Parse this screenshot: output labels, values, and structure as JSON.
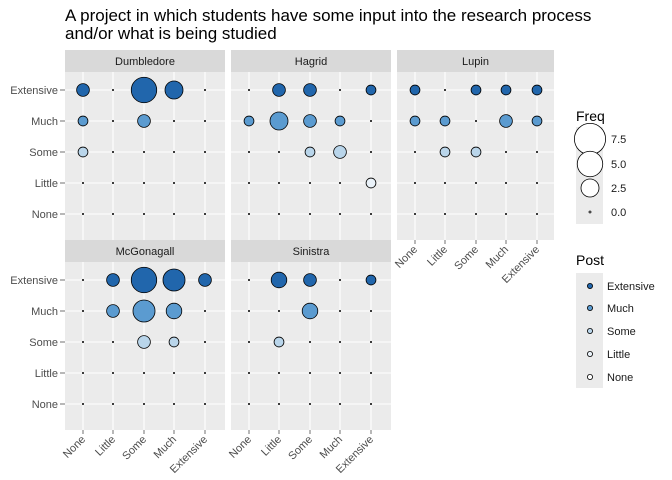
{
  "chart_data": {
    "type": "scatter",
    "title": "A project in which students have some input into the research process",
    "title_line2": "and/or what is being studied",
    "categories": [
      "None",
      "Little",
      "Some",
      "Much",
      "Extensive"
    ],
    "facet_order": [
      "Dumbledore",
      "Hagrid",
      "Lupin",
      "McGonagall",
      "Sinistra"
    ],
    "grid": true,
    "legend_position": "right",
    "size_legend": {
      "title": "Freq",
      "breaks": [
        7.5,
        5.0,
        2.5,
        0.0
      ],
      "labels": [
        "7.5",
        "5.0",
        "2.5",
        "0.0"
      ]
    },
    "fill_legend": {
      "title": "Post",
      "levels": [
        "Extensive",
        "Much",
        "Some",
        "Little",
        "None"
      ],
      "colors": {
        "Extensive": "#2166ac",
        "Much": "#5b9bd0",
        "Some": "#b9d5ea",
        "Little": "#eaf2f9",
        "None": "#ffffff"
      }
    },
    "facets": [
      {
        "name": "Dumbledore",
        "points": [
          {
            "x": "None",
            "y": "Extensive",
            "freq": 1
          },
          {
            "x": "Some",
            "y": "Extensive",
            "freq": 4
          },
          {
            "x": "Much",
            "y": "Extensive",
            "freq": 2
          },
          {
            "x": "None",
            "y": "Much",
            "freq": 0.6
          },
          {
            "x": "Some",
            "y": "Much",
            "freq": 1
          },
          {
            "x": "None",
            "y": "Some",
            "freq": 0.6
          }
        ]
      },
      {
        "name": "Hagrid",
        "points": [
          {
            "x": "Little",
            "y": "Extensive",
            "freq": 1
          },
          {
            "x": "Some",
            "y": "Extensive",
            "freq": 1
          },
          {
            "x": "Extensive",
            "y": "Extensive",
            "freq": 0.6
          },
          {
            "x": "None",
            "y": "Much",
            "freq": 0.6
          },
          {
            "x": "Little",
            "y": "Much",
            "freq": 2
          },
          {
            "x": "Some",
            "y": "Much",
            "freq": 1
          },
          {
            "x": "Much",
            "y": "Much",
            "freq": 0.6
          },
          {
            "x": "Some",
            "y": "Some",
            "freq": 0.6
          },
          {
            "x": "Much",
            "y": "Some",
            "freq": 1
          },
          {
            "x": "Extensive",
            "y": "Little",
            "freq": 0.6
          }
        ]
      },
      {
        "name": "Lupin",
        "points": [
          {
            "x": "None",
            "y": "Extensive",
            "freq": 0.6
          },
          {
            "x": "Some",
            "y": "Extensive",
            "freq": 0.6
          },
          {
            "x": "Much",
            "y": "Extensive",
            "freq": 0.6
          },
          {
            "x": "Extensive",
            "y": "Extensive",
            "freq": 0.6
          },
          {
            "x": "None",
            "y": "Much",
            "freq": 0.6
          },
          {
            "x": "Little",
            "y": "Much",
            "freq": 0.6
          },
          {
            "x": "Much",
            "y": "Much",
            "freq": 1
          },
          {
            "x": "Extensive",
            "y": "Much",
            "freq": 0.6
          },
          {
            "x": "Little",
            "y": "Some",
            "freq": 0.6
          },
          {
            "x": "Some",
            "y": "Some",
            "freq": 0.6
          }
        ]
      },
      {
        "name": "McGonagall",
        "points": [
          {
            "x": "Little",
            "y": "Extensive",
            "freq": 1
          },
          {
            "x": "Some",
            "y": "Extensive",
            "freq": 4
          },
          {
            "x": "Much",
            "y": "Extensive",
            "freq": 3
          },
          {
            "x": "Extensive",
            "y": "Extensive",
            "freq": 1
          },
          {
            "x": "Little",
            "y": "Much",
            "freq": 1
          },
          {
            "x": "Some",
            "y": "Much",
            "freq": 3
          },
          {
            "x": "Much",
            "y": "Much",
            "freq": 1.5
          },
          {
            "x": "Some",
            "y": "Some",
            "freq": 1
          },
          {
            "x": "Much",
            "y": "Some",
            "freq": 0.6
          }
        ]
      },
      {
        "name": "Sinistra",
        "points": [
          {
            "x": "Little",
            "y": "Extensive",
            "freq": 1.5
          },
          {
            "x": "Some",
            "y": "Extensive",
            "freq": 1
          },
          {
            "x": "Extensive",
            "y": "Extensive",
            "freq": 0.6
          },
          {
            "x": "Some",
            "y": "Much",
            "freq": 1.5
          },
          {
            "x": "Little",
            "y": "Some",
            "freq": 0.6
          }
        ]
      }
    ]
  }
}
